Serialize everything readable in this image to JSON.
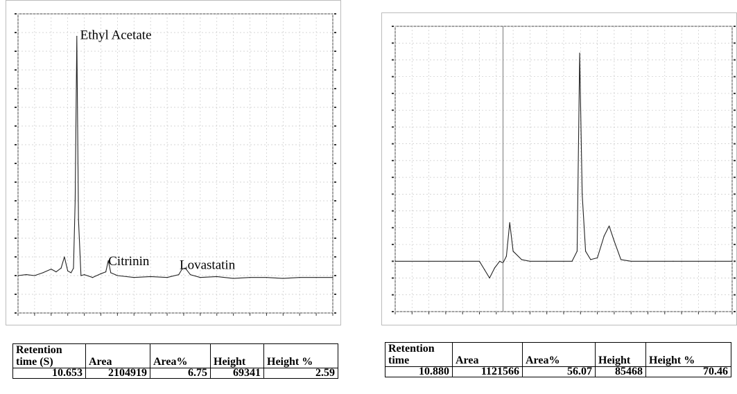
{
  "chart_data": [
    {
      "type": "line",
      "title": "",
      "xlabel": "",
      "ylabel": "",
      "xlim": [
        0,
        19
      ],
      "ylim": [
        -2,
        14
      ],
      "grid": true,
      "annotations": [
        {
          "text": "Ethyl Acetate",
          "x": 3.5,
          "y": 12.8
        },
        {
          "text": "Citrinin",
          "x": 5.2,
          "y": 0.7
        },
        {
          "text": "Lovastatin",
          "x": 9.5,
          "y": 0.5
        }
      ],
      "series": [
        {
          "x": [
            0,
            0.5,
            1.0,
            1.5,
            2.0,
            2.3,
            2.6,
            2.8,
            3.0,
            3.2,
            3.35,
            3.45,
            3.55,
            3.65,
            3.8,
            4.0,
            4.5,
            5.0,
            5.3,
            5.45,
            5.6,
            6.0,
            7.0,
            8.0,
            9.0,
            9.7,
            9.9,
            10.1,
            10.4,
            11.0,
            12.0,
            13.0,
            14.0,
            15.0,
            16.0,
            17.0,
            18.0,
            19.0
          ],
          "values": [
            0.0,
            0.05,
            0.0,
            0.15,
            0.35,
            0.2,
            0.4,
            1.0,
            0.25,
            0.15,
            0.4,
            4.0,
            12.8,
            3.0,
            0.0,
            0.05,
            -0.1,
            0.1,
            0.2,
            0.8,
            0.15,
            0.0,
            -0.1,
            -0.05,
            -0.1,
            0.05,
            0.35,
            0.4,
            0.05,
            -0.1,
            -0.05,
            -0.15,
            -0.1,
            -0.1,
            -0.15,
            -0.1,
            -0.1,
            -0.1
          ]
        }
      ]
    },
    {
      "type": "line",
      "title": "",
      "xlabel": "",
      "ylabel": "",
      "xlim": [
        0,
        20
      ],
      "ylim": [
        -3,
        14
      ],
      "grid": true,
      "series": [
        {
          "x": [
            0,
            2,
            4,
            5.0,
            5.3,
            5.6,
            5.9,
            6.2,
            6.4,
            6.6,
            6.8,
            7.0,
            7.5,
            8.0,
            9.0,
            10.0,
            10.5,
            10.8,
            10.95,
            11.1,
            11.3,
            11.6,
            12.0,
            12.4,
            12.7,
            13.0,
            13.4,
            14.0,
            15.0,
            16.0,
            16.5,
            17.0,
            18.0,
            19.0,
            20.0
          ],
          "values": [
            0.0,
            0.0,
            0.0,
            0.0,
            -0.5,
            -1.0,
            -0.4,
            0.0,
            -0.1,
            0.3,
            2.3,
            0.6,
            0.1,
            0.0,
            0.0,
            0.0,
            0.0,
            0.6,
            12.4,
            4.0,
            0.6,
            0.1,
            0.2,
            1.5,
            2.1,
            1.2,
            0.1,
            0.0,
            0.0,
            0.0,
            0.0,
            0.0,
            0.0,
            0.0,
            0.0
          ]
        }
      ]
    }
  ],
  "left_table": {
    "headers": [
      "Retention time (S)",
      "Area",
      "Area%",
      "Height",
      "Height %"
    ],
    "row": [
      "10.653",
      "2104919",
      "6.75",
      "69341",
      "2.59"
    ]
  },
  "right_table": {
    "headers": [
      "Retention time",
      "Area",
      "Area%",
      "Height",
      "Height %"
    ],
    "row": [
      "10.880",
      "1121566",
      "56.07",
      "85468",
      "70.46"
    ]
  }
}
